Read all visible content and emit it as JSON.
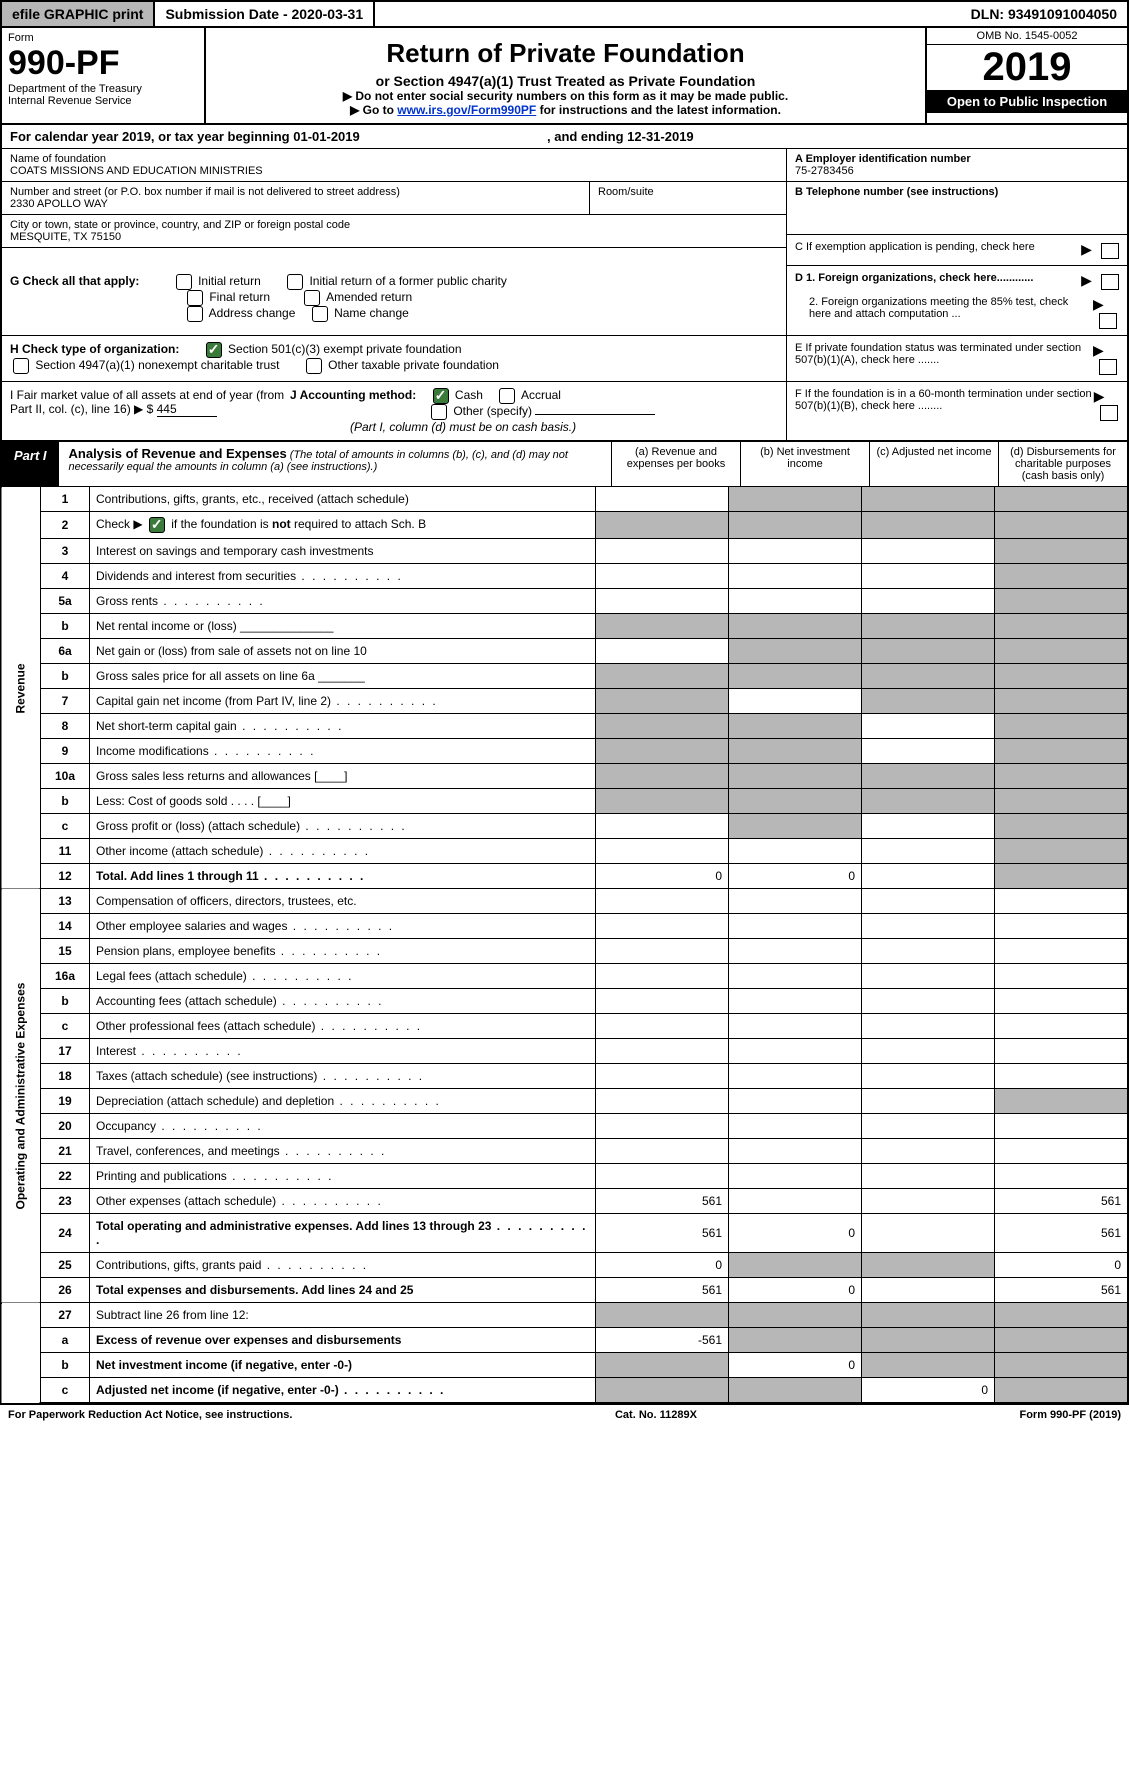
{
  "topbar": {
    "efile": "efile GRAPHIC print",
    "submission_label": "Submission Date - 2020-03-31",
    "dln": "DLN: 93491091004050"
  },
  "header": {
    "form_label": "Form",
    "form_no": "990-PF",
    "dept": "Department of the Treasury",
    "irs": "Internal Revenue Service",
    "title": "Return of Private Foundation",
    "subtitle": "or Section 4947(a)(1) Trust Treated as Private Foundation",
    "note1": "▶ Do not enter social security numbers on this form as it may be made public.",
    "note2_pre": "▶ Go to ",
    "note2_link": "www.irs.gov/Form990PF",
    "note2_post": " for instructions and the latest information.",
    "omb": "OMB No. 1545-0052",
    "year": "2019",
    "open": "Open to Public Inspection"
  },
  "calyear": {
    "text_a": "For calendar year 2019, or tax year beginning ",
    "begin": "01-01-2019",
    "text_b": " , and ending ",
    "end": "12-31-2019"
  },
  "entity": {
    "name_label": "Name of foundation",
    "name": "COATS MISSIONS AND EDUCATION MINISTRIES",
    "addr_label": "Number and street (or P.O. box number if mail is not delivered to street address)",
    "addr": "2330 APOLLO WAY",
    "room_label": "Room/suite",
    "city_label": "City or town, state or province, country, and ZIP or foreign postal code",
    "city": "MESQUITE, TX  75150",
    "ein_label": "A Employer identification number",
    "ein": "75-2783456",
    "tel_label": "B Telephone number (see instructions)",
    "c_label": "C If exemption application is pending, check here",
    "d1": "D 1. Foreign organizations, check here............",
    "d2": "2. Foreign organizations meeting the 85% test, check here and attach computation ...",
    "e_label": "E If private foundation status was terminated under section 507(b)(1)(A), check here .......",
    "f_label": "F If the foundation is in a 60-month termination under section 507(b)(1)(B), check here ........"
  },
  "g": {
    "label": "G Check all that apply:",
    "opts": [
      "Initial return",
      "Initial return of a former public charity",
      "Final return",
      "Amended return",
      "Address change",
      "Name change"
    ]
  },
  "h": {
    "label": "H Check type of organization:",
    "opt1": "Section 501(c)(3) exempt private foundation",
    "opt2": "Section 4947(a)(1) nonexempt charitable trust",
    "opt3": "Other taxable private foundation"
  },
  "i": {
    "label": "I Fair market value of all assets at end of year (from Part II, col. (c), line 16) ▶ $",
    "value": "445",
    "j_label": "J Accounting method:",
    "cash": "Cash",
    "accrual": "Accrual",
    "other": "Other (specify)",
    "note": "(Part I, column (d) must be on cash basis.)"
  },
  "part1": {
    "badge": "Part I",
    "title": "Analysis of Revenue and Expenses",
    "note": " (The total of amounts in columns (b), (c), and (d) may not necessarily equal the amounts in column (a) (see instructions).)",
    "col_a": "(a) Revenue and expenses per books",
    "col_b": "(b) Net investment income",
    "col_c": "(c) Adjusted net income",
    "col_d": "(d) Disbursements for charitable purposes (cash basis only)"
  },
  "vlabels": {
    "rev": "Revenue",
    "exp": "Operating and Administrative Expenses"
  },
  "lines": [
    {
      "n": "1",
      "d": "Contributions, gifts, grants, etc., received (attach schedule)",
      "sA": false,
      "sB": true,
      "sC": true,
      "sD": true
    },
    {
      "n": "2",
      "d": "Check ▶ [✓] if the foundation is not required to attach Sch. B",
      "sA": true,
      "sB": true,
      "sC": true,
      "sD": true,
      "chk": true
    },
    {
      "n": "3",
      "d": "Interest on savings and temporary cash investments",
      "sD": true
    },
    {
      "n": "4",
      "d": "Dividends and interest from securities",
      "dots": true,
      "sD": true
    },
    {
      "n": "5a",
      "d": "Gross rents",
      "dots": true,
      "sD": true
    },
    {
      "n": "b",
      "d": "Net rental income or (loss) ______________",
      "sA": true,
      "sB": true,
      "sC": true,
      "sD": true
    },
    {
      "n": "6a",
      "d": "Net gain or (loss) from sale of assets not on line 10",
      "sB": true,
      "sC": true,
      "sD": true
    },
    {
      "n": "b",
      "d": "Gross sales price for all assets on line 6a _______",
      "sA": true,
      "sB": true,
      "sC": true,
      "sD": true
    },
    {
      "n": "7",
      "d": "Capital gain net income (from Part IV, line 2)",
      "dots": true,
      "sA": true,
      "sC": true,
      "sD": true
    },
    {
      "n": "8",
      "d": "Net short-term capital gain",
      "dots": true,
      "sA": true,
      "sB": true,
      "sD": true
    },
    {
      "n": "9",
      "d": "Income modifications",
      "dots": true,
      "sA": true,
      "sB": true,
      "sD": true
    },
    {
      "n": "10a",
      "d": "Gross sales less returns and allowances [____]",
      "sA": true,
      "sB": true,
      "sC": true,
      "sD": true
    },
    {
      "n": "b",
      "d": "Less: Cost of goods sold     . . . .  [____]",
      "sA": true,
      "sB": true,
      "sC": true,
      "sD": true
    },
    {
      "n": "c",
      "d": "Gross profit or (loss) (attach schedule)",
      "dots": true,
      "sB": true,
      "sD": true
    },
    {
      "n": "11",
      "d": "Other income (attach schedule)",
      "dots": true,
      "sD": true
    },
    {
      "n": "12",
      "d": "Total. Add lines 1 through 11",
      "dots": true,
      "b": true,
      "a": "0",
      "bb": "0",
      "sD": true
    }
  ],
  "exp_lines": [
    {
      "n": "13",
      "d": "Compensation of officers, directors, trustees, etc."
    },
    {
      "n": "14",
      "d": "Other employee salaries and wages",
      "dots": true
    },
    {
      "n": "15",
      "d": "Pension plans, employee benefits",
      "dots": true
    },
    {
      "n": "16a",
      "d": "Legal fees (attach schedule)",
      "dots": true
    },
    {
      "n": "b",
      "d": "Accounting fees (attach schedule)",
      "dots": true
    },
    {
      "n": "c",
      "d": "Other professional fees (attach schedule)",
      "dots": true
    },
    {
      "n": "17",
      "d": "Interest",
      "dots": true
    },
    {
      "n": "18",
      "d": "Taxes (attach schedule) (see instructions)",
      "dots": true
    },
    {
      "n": "19",
      "d": "Depreciation (attach schedule) and depletion",
      "dots": true,
      "sD": true
    },
    {
      "n": "20",
      "d": "Occupancy",
      "dots": true
    },
    {
      "n": "21",
      "d": "Travel, conferences, and meetings",
      "dots": true
    },
    {
      "n": "22",
      "d": "Printing and publications",
      "dots": true
    },
    {
      "n": "23",
      "d": "Other expenses (attach schedule)",
      "dots": true,
      "a": "561",
      "dd": "561"
    },
    {
      "n": "24",
      "d": "Total operating and administrative expenses. Add lines 13 through 23",
      "dots": true,
      "b": true,
      "a": "561",
      "bb": "0",
      "dd": "561"
    },
    {
      "n": "25",
      "d": "Contributions, gifts, grants paid",
      "dots": true,
      "a": "0",
      "sB": true,
      "sC": true,
      "dd": "0"
    },
    {
      "n": "26",
      "d": "Total expenses and disbursements. Add lines 24 and 25",
      "b": true,
      "a": "561",
      "bb": "0",
      "dd": "561"
    }
  ],
  "net_lines": [
    {
      "n": "27",
      "d": "Subtract line 26 from line 12:",
      "sA": true,
      "sB": true,
      "sC": true,
      "sD": true
    },
    {
      "n": "a",
      "d": "Excess of revenue over expenses and disbursements",
      "b": true,
      "a": "-561",
      "sB": true,
      "sC": true,
      "sD": true
    },
    {
      "n": "b",
      "d": "Net investment income (if negative, enter -0-)",
      "b": true,
      "sA": true,
      "bb": "0",
      "sC": true,
      "sD": true
    },
    {
      "n": "c",
      "d": "Adjusted net income (if negative, enter -0-)",
      "b": true,
      "dots": true,
      "sA": true,
      "sB": true,
      "cc": "0",
      "sD": true
    }
  ],
  "footer": {
    "left": "For Paperwork Reduction Act Notice, see instructions.",
    "mid": "Cat. No. 11289X",
    "right": "Form 990-PF (2019)"
  }
}
